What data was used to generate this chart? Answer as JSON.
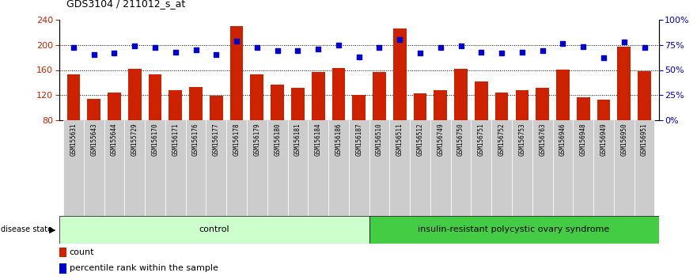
{
  "title": "GDS3104 / 211012_s_at",
  "samples": [
    "GSM155631",
    "GSM155643",
    "GSM155644",
    "GSM155729",
    "GSM156170",
    "GSM156171",
    "GSM156176",
    "GSM156177",
    "GSM156178",
    "GSM156179",
    "GSM156180",
    "GSM156181",
    "GSM156184",
    "GSM156186",
    "GSM156187",
    "GSM156510",
    "GSM156511",
    "GSM156512",
    "GSM156749",
    "GSM156750",
    "GSM156751",
    "GSM156752",
    "GSM156753",
    "GSM156763",
    "GSM156946",
    "GSM156948",
    "GSM156949",
    "GSM156950",
    "GSM156951"
  ],
  "bar_values": [
    153,
    114,
    124,
    162,
    153,
    128,
    133,
    119,
    230,
    153,
    137,
    132,
    157,
    163,
    121,
    157,
    226,
    123,
    128,
    162,
    142,
    124,
    128,
    132,
    161,
    117,
    113,
    197,
    158
  ],
  "percentile_values": [
    72,
    65,
    67,
    74,
    72,
    68,
    70,
    65,
    79,
    72,
    69,
    69,
    71,
    75,
    63,
    72,
    80,
    67,
    72,
    74,
    68,
    67,
    68,
    69,
    76,
    73,
    62,
    78,
    72
  ],
  "n_control": 15,
  "n_disease": 14,
  "control_label": "control",
  "disease_label": "insulin-resistant polycystic ovary syndrome",
  "group_label": "disease state",
  "bar_color": "#cc2200",
  "dot_color": "#0000cc",
  "control_bg": "#ccffcc",
  "disease_bg": "#44cc44",
  "xtick_bg": "#cccccc",
  "ymin": 80,
  "ymax": 240,
  "yticks": [
    80,
    120,
    160,
    200,
    240
  ],
  "y2ticks": [
    0,
    25,
    50,
    75,
    100
  ],
  "y2labels": [
    "0%",
    "25%",
    "50%",
    "75%",
    "100%"
  ],
  "dotted_lines": [
    120,
    160,
    200
  ],
  "legend_count_label": "count",
  "legend_pct_label": "percentile rank within the sample"
}
